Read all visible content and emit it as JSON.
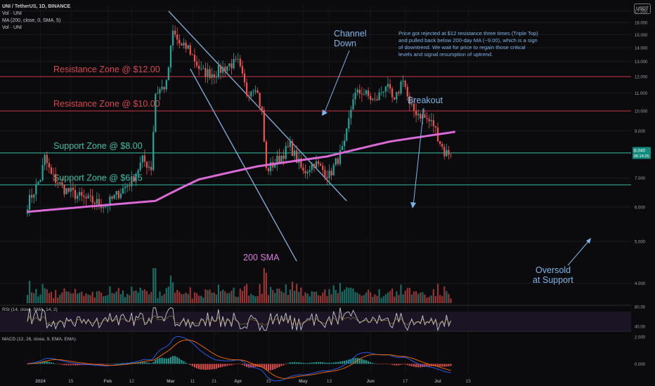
{
  "header": {
    "symbol_line": "UNI / TetherUS, 1D, BINANCE",
    "vol_line": "Vol · UNI",
    "ma_line": "MA (200, close, 0, SMA, 5)",
    "vol_line2": "Vol · UNI",
    "currency_button": "USDT"
  },
  "colors": {
    "background": "#0b0b0e",
    "up": "#26a69a",
    "down": "#ef5350",
    "resistance": "#b2323a",
    "support": "#2e9e8a",
    "sma": "#d96ad6",
    "channel": "#7fa8d4",
    "annotation": "#7db6e8"
  },
  "chart_data": [
    {
      "type": "candlestick",
      "title": "UNI / TetherUS, 1D, BINANCE",
      "y_scale": "log",
      "ylim": [
        3.6,
        17.5
      ],
      "y_ticks": [
        "17.000",
        "16.000",
        "15.000",
        "14.000",
        "13.000",
        "12.000",
        "11.000",
        "10.000",
        "9.000",
        "8.000",
        "7.000",
        "6.000",
        "5.000",
        "4.000"
      ],
      "y_tick_values": [
        17,
        16,
        15,
        14,
        13,
        12,
        11,
        10,
        9,
        8,
        7,
        6,
        5,
        4
      ],
      "x_ticks": [
        "2024",
        "15",
        "Feb",
        "12",
        "Mar",
        "11",
        "21",
        "Apr",
        "15",
        "May",
        "13",
        "Jun",
        "17",
        "Jul",
        "15"
      ],
      "current_price": "8.040",
      "countdown": "06:14:25",
      "ohlc_close_anchors": [
        {
          "t": "Dec 26",
          "close": 6.1
        },
        {
          "t": "Jan 1",
          "close": 7.0
        },
        {
          "t": "Jan 3",
          "close": 7.8
        },
        {
          "t": "Jan 6",
          "close": 7.1
        },
        {
          "t": "Jan 12",
          "close": 6.6
        },
        {
          "t": "Jan 20",
          "close": 6.3
        },
        {
          "t": "Jan 31",
          "close": 6.05
        },
        {
          "t": "Feb 12",
          "close": 6.9
        },
        {
          "t": "Feb 17",
          "close": 7.7
        },
        {
          "t": "Feb 21",
          "close": 7.4
        },
        {
          "t": "Feb 23",
          "close": 11.0
        },
        {
          "t": "Feb 28",
          "close": 11.5
        },
        {
          "t": "Mar 2",
          "close": 15.2
        },
        {
          "t": "Mar 6",
          "close": 14.0
        },
        {
          "t": "Mar 9",
          "close": 14.0
        },
        {
          "t": "Mar 15",
          "close": 12.3
        },
        {
          "t": "Mar 21",
          "close": 12.2
        },
        {
          "t": "Mar 28",
          "close": 12.8
        },
        {
          "t": "Apr 1",
          "close": 12.9
        },
        {
          "t": "Apr 5",
          "close": 11.0
        },
        {
          "t": "Apr 9",
          "close": 11.5
        },
        {
          "t": "Apr 12",
          "close": 9.9
        },
        {
          "t": "Apr 14",
          "close": 7.3
        },
        {
          "t": "Apr 18",
          "close": 7.6
        },
        {
          "t": "Apr 25",
          "close": 8.3
        },
        {
          "t": "May 1",
          "close": 7.2
        },
        {
          "t": "May 6",
          "close": 7.6
        },
        {
          "t": "May 13",
          "close": 7.1
        },
        {
          "t": "May 20",
          "close": 8.3
        },
        {
          "t": "May 24",
          "close": 10.8
        },
        {
          "t": "May 28",
          "close": 11.1
        },
        {
          "t": "Jun 3",
          "close": 10.5
        },
        {
          "t": "Jun 8",
          "close": 11.5
        },
        {
          "t": "Jun 12",
          "close": 10.4
        },
        {
          "t": "Jun 16",
          "close": 12.0
        },
        {
          "t": "Jun 19",
          "close": 10.2
        },
        {
          "t": "Jun 24",
          "close": 9.8
        },
        {
          "t": "Jun 30",
          "close": 9.3
        },
        {
          "t": "Jul 5",
          "close": 8.0
        },
        {
          "t": "Jul 8",
          "close": 8.04
        }
      ],
      "ma200_anchors": [
        {
          "t": "Dec 26",
          "value": 5.85
        },
        {
          "t": "Feb 23",
          "value": 6.2
        },
        {
          "t": "Mar 14",
          "value": 6.95
        },
        {
          "t": "Apr 10",
          "value": 7.45
        },
        {
          "t": "May 12",
          "value": 7.85
        },
        {
          "t": "Jun 10",
          "value": 8.5
        },
        {
          "t": "Jul 10",
          "value": 8.95
        }
      ]
    },
    {
      "type": "line",
      "title": "RSI (14, close, SMA, 14, 2)",
      "ylim": [
        30,
        80
      ],
      "y_ticks": [
        "80.00",
        "40.00"
      ],
      "y_tick_values": [
        80,
        40
      ],
      "band": [
        30,
        70
      ]
    },
    {
      "type": "bar",
      "title": "MACD (12, 26, close, 9, EMA, EMA)",
      "ylim": [
        -0.7,
        2.3
      ],
      "y_ticks": [
        "2.000",
        "0.000"
      ],
      "y_tick_values": [
        2,
        0
      ]
    }
  ],
  "levels": [
    {
      "label": "Resistance Zone @ $12.00",
      "price": 12.0,
      "kind": "resistance"
    },
    {
      "label": "Resistance Zone @ $10.00",
      "price": 10.0,
      "kind": "resistance"
    },
    {
      "label": "Support Zone @ $8.00",
      "price": 8.0,
      "kind": "support"
    },
    {
      "label": "Support Zone @ $6.75",
      "price": 6.75,
      "kind": "support"
    }
  ],
  "annotations": {
    "channel_down_1": "Channel",
    "channel_down_2": "Down",
    "breakout": "Breakout",
    "sma_label": "200 SMA",
    "oversold_1": "Oversold",
    "oversold_2": "at Support",
    "note_1": "Price got rejected at $12 resistance three times (Triple Top)",
    "note_2": "and pulled back below 200-day MA (~9.00), which is a sign",
    "note_3": "of downtrend. We wait for price to regain those critical",
    "note_4": "levels and signal resumption of uptrend."
  }
}
